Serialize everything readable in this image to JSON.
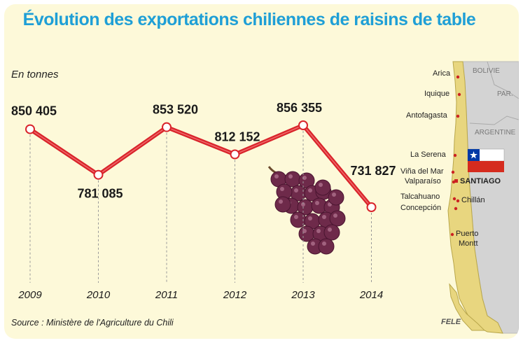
{
  "chart_data": {
    "type": "line",
    "title": "Évolution des exportations chiliennes de raisins de table",
    "ylabel": "En tonnes",
    "source": "Source : Ministère de l'Agriculture du Chili",
    "credit": "FELE",
    "ylim": [
      700000,
      880000
    ],
    "grid": false,
    "categories": [
      "2009",
      "2010",
      "2011",
      "2012",
      "2013",
      "2014"
    ],
    "values": [
      850405,
      781085,
      853520,
      812152,
      856355,
      731827
    ],
    "value_labels": [
      "850 405",
      "781 085",
      "853 520",
      "812 152",
      "856 355",
      "731 827"
    ],
    "colors": {
      "title": "#1f9fd6",
      "line": "#d9242b",
      "background": "#fdf9d9"
    }
  },
  "map": {
    "countries": [
      "BOLIVIE",
      "PAR.",
      "ARGENTINE"
    ],
    "cities": [
      "Arica",
      "Iquique",
      "Antofagasta",
      "La Serena",
      "Viña del Mar",
      "Valparaíso",
      "Talcahuano",
      "Concepción",
      "Chillán",
      "Puerto Montt"
    ],
    "capital": "SANTIAGO",
    "colors": {
      "chile": "#e9d98a",
      "neighbour": "#d0d0d0",
      "sea": "#fdf9d9",
      "dot": "#cc2222"
    }
  }
}
